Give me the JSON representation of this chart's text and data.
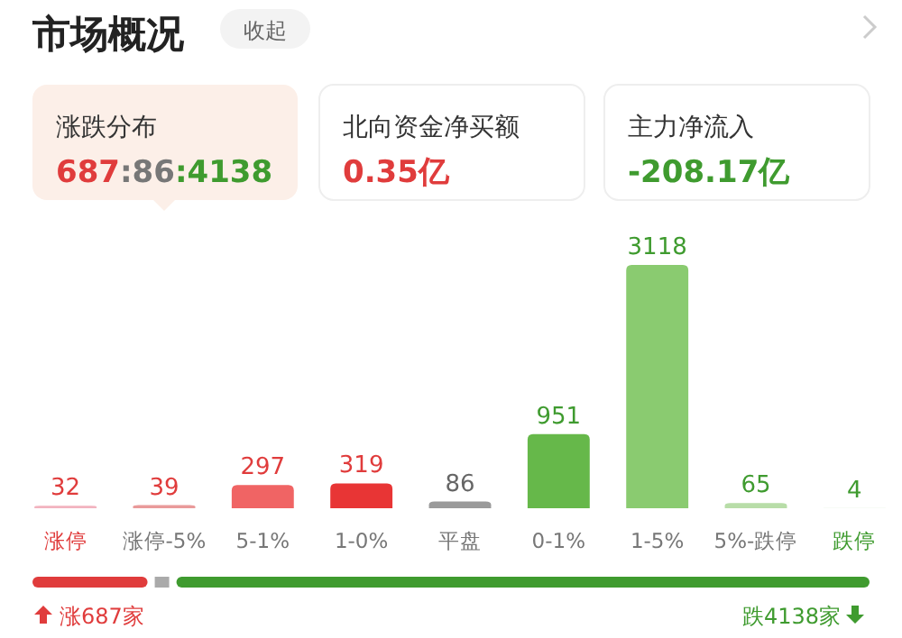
{
  "chart_data": {
    "type": "bar",
    "title": "市场概况",
    "categories": [
      "涨停",
      "涨停-5%",
      "5-1%",
      "1-0%",
      "平盘",
      "0-1%",
      "1-5%",
      "5%-跌停",
      "跌停"
    ],
    "values": [
      32,
      39,
      297,
      319,
      86,
      951,
      3118,
      65,
      4
    ],
    "colors": [
      "#f2b3bf",
      "#e99a9a",
      "#f06464",
      "#e83535",
      "#9a9a9a",
      "#66b84a",
      "#8acb70",
      "#b8dda8",
      "#dff0d6"
    ],
    "data_labels": true,
    "annotations": [
      "收起",
      "涨跌分布",
      "687:86:4138",
      "北向资金净买额",
      "0.35亿",
      "主力净流入",
      "-208.17亿",
      "涨687家",
      "跌4138家"
    ]
  }
}
